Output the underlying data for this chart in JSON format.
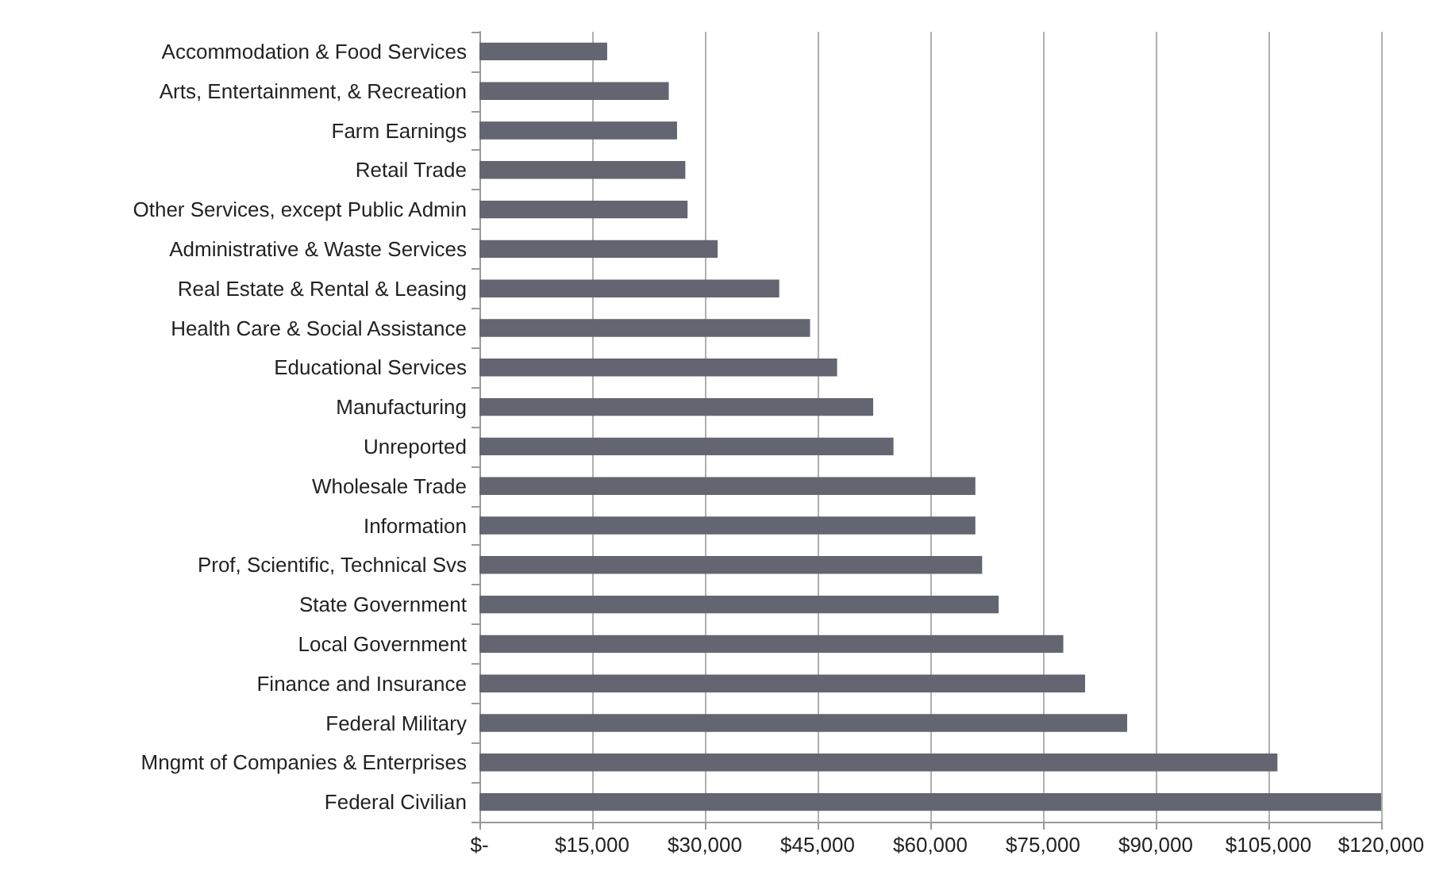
{
  "chart_data": {
    "type": "bar",
    "orientation": "horizontal",
    "categories": [
      "Accommodation & Food Services",
      "Arts, Entertainment, & Recreation",
      "Farm Earnings",
      "Retail Trade",
      "Other Services, except Public Admin",
      "Administrative & Waste Services",
      "Real Estate & Rental & Leasing",
      "Health Care & Social Assistance",
      "Educational Services",
      "Manufacturing",
      "Unreported",
      "Wholesale Trade",
      "Information",
      "Prof, Scientific, Technical Svs",
      "State Government",
      "Local Government",
      "Finance and Insurance",
      "Federal Military",
      "Mngmt of Companies & Enterprises",
      "Federal Civilian"
    ],
    "values": [
      17000,
      25200,
      26300,
      27400,
      27700,
      31700,
      39900,
      44000,
      47600,
      52400,
      55100,
      66000,
      66000,
      66900,
      69100,
      77700,
      80600,
      86200,
      106200,
      120000
    ],
    "color": "#636670",
    "xlim": [
      0,
      120000
    ],
    "xticks": [
      {
        "value": 0,
        "label": "$-"
      },
      {
        "value": 15000,
        "label": "$15,000"
      },
      {
        "value": 30000,
        "label": "$30,000"
      },
      {
        "value": 45000,
        "label": "$45,000"
      },
      {
        "value": 60000,
        "label": "$60,000"
      },
      {
        "value": 75000,
        "label": "$75,000"
      },
      {
        "value": 90000,
        "label": "$90,000"
      },
      {
        "value": 105000,
        "label": "$105,000"
      },
      {
        "value": 120000,
        "label": "$120,000"
      }
    ],
    "grid": "x"
  }
}
